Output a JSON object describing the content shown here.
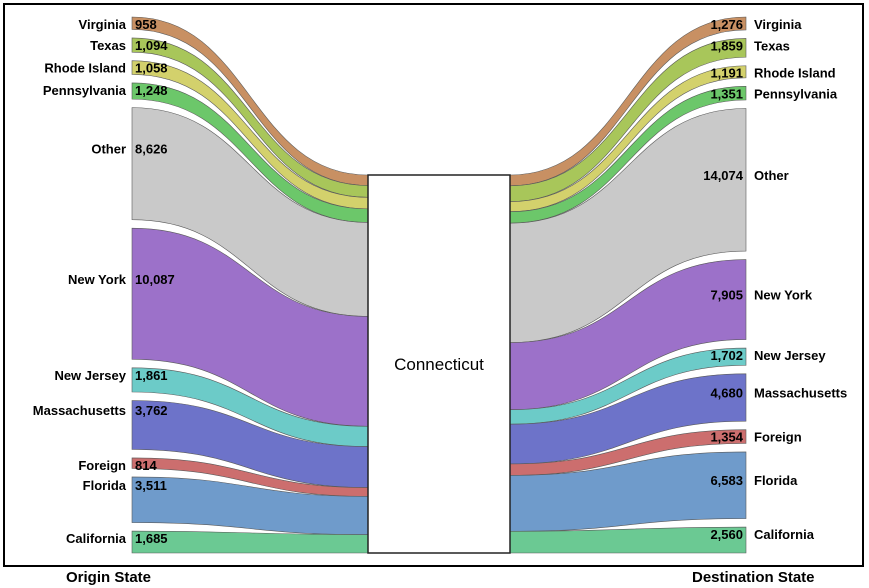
{
  "chart_data": {
    "type": "sankey",
    "center_node": "Connecticut",
    "left_axis_label": "Origin State",
    "right_axis_label": "Destination State",
    "origin": [
      {
        "state": "Virginia",
        "value": 958,
        "value_label": "958",
        "color": "#c89063"
      },
      {
        "state": "Texas",
        "value": 1094,
        "value_label": "1,094",
        "color": "#a8c65a"
      },
      {
        "state": "Rhode Island",
        "value": 1058,
        "value_label": "1,058",
        "color": "#d3d16c"
      },
      {
        "state": "Pennsylvania",
        "value": 1248,
        "value_label": "1,248",
        "color": "#6cc76a"
      },
      {
        "state": "Other",
        "value": 8626,
        "value_label": "8,626",
        "color": "#c9c9c9"
      },
      {
        "state": "New York",
        "value": 10087,
        "value_label": "10,087",
        "color": "#9c71c9"
      },
      {
        "state": "New Jersey",
        "value": 1861,
        "value_label": "1,861",
        "color": "#6ccbc8"
      },
      {
        "state": "Massachusetts",
        "value": 3762,
        "value_label": "3,762",
        "color": "#6d73c9"
      },
      {
        "state": "Foreign",
        "value": 814,
        "value_label": "814",
        "color": "#cc6e6e"
      },
      {
        "state": "Florida",
        "value": 3511,
        "value_label": "3,511",
        "color": "#6f9bcb"
      },
      {
        "state": "California",
        "value": 1685,
        "value_label": "1,685",
        "color": "#6bc993"
      }
    ],
    "destination": [
      {
        "state": "Virginia",
        "value": 1276,
        "value_label": "1,276",
        "color": "#c89063"
      },
      {
        "state": "Texas",
        "value": 1859,
        "value_label": "1,859",
        "color": "#a8c65a"
      },
      {
        "state": "Rhode Island",
        "value": 1191,
        "value_label": "1,191",
        "color": "#d3d16c"
      },
      {
        "state": "Pennsylvania",
        "value": 1351,
        "value_label": "1,351",
        "color": "#6cc76a"
      },
      {
        "state": "Other",
        "value": 14074,
        "value_label": "14,074",
        "color": "#c9c9c9"
      },
      {
        "state": "New York",
        "value": 7905,
        "value_label": "7,905",
        "color": "#9c71c9"
      },
      {
        "state": "New Jersey",
        "value": 1702,
        "value_label": "1,702",
        "color": "#6ccbc8"
      },
      {
        "state": "Massachusetts",
        "value": 4680,
        "value_label": "4,680",
        "color": "#6d73c9"
      },
      {
        "state": "Foreign",
        "value": 1354,
        "value_label": "1,354",
        "color": "#cc6e6e"
      },
      {
        "state": "Florida",
        "value": 6583,
        "value_label": "6,583",
        "color": "#6f9bcb"
      },
      {
        "state": "California",
        "value": 2560,
        "value_label": "2,560",
        "color": "#6bc993"
      }
    ]
  }
}
